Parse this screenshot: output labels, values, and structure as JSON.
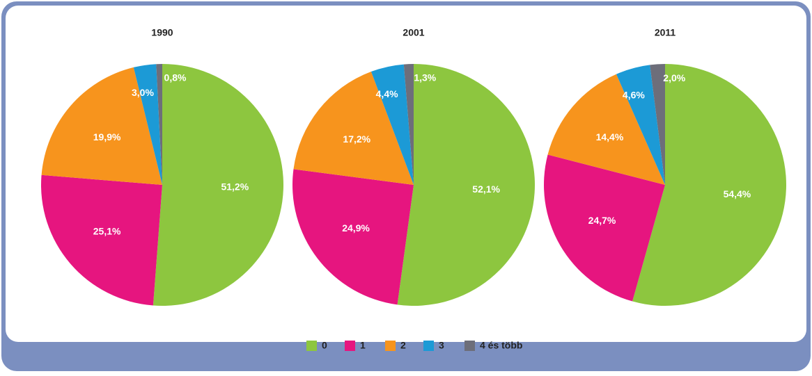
{
  "legend": {
    "categories": [
      "0",
      "1",
      "2",
      "3",
      "4 és több"
    ],
    "colors": [
      "#8dc63f",
      "#e6157f",
      "#f7941d",
      "#1c9ad6",
      "#6d6e7a"
    ]
  },
  "chart_data": [
    {
      "type": "pie",
      "title": "1990",
      "values": [
        51.2,
        25.1,
        19.9,
        3.0,
        0.8
      ],
      "value_labels": [
        "51,2%",
        "25,1%",
        "19,9%",
        "3,0%",
        "0,8%"
      ]
    },
    {
      "type": "pie",
      "title": "2001",
      "values": [
        52.1,
        24.9,
        17.2,
        4.4,
        1.3
      ],
      "value_labels": [
        "52,1%",
        "24,9%",
        "17,2%",
        "4,4%",
        "1,3%"
      ]
    },
    {
      "type": "pie",
      "title": "2011",
      "values": [
        54.4,
        24.7,
        14.4,
        4.6,
        2.0
      ],
      "value_labels": [
        "54,4%",
        "24,7%",
        "14,4%",
        "4,6%",
        "2,0%"
      ]
    }
  ]
}
